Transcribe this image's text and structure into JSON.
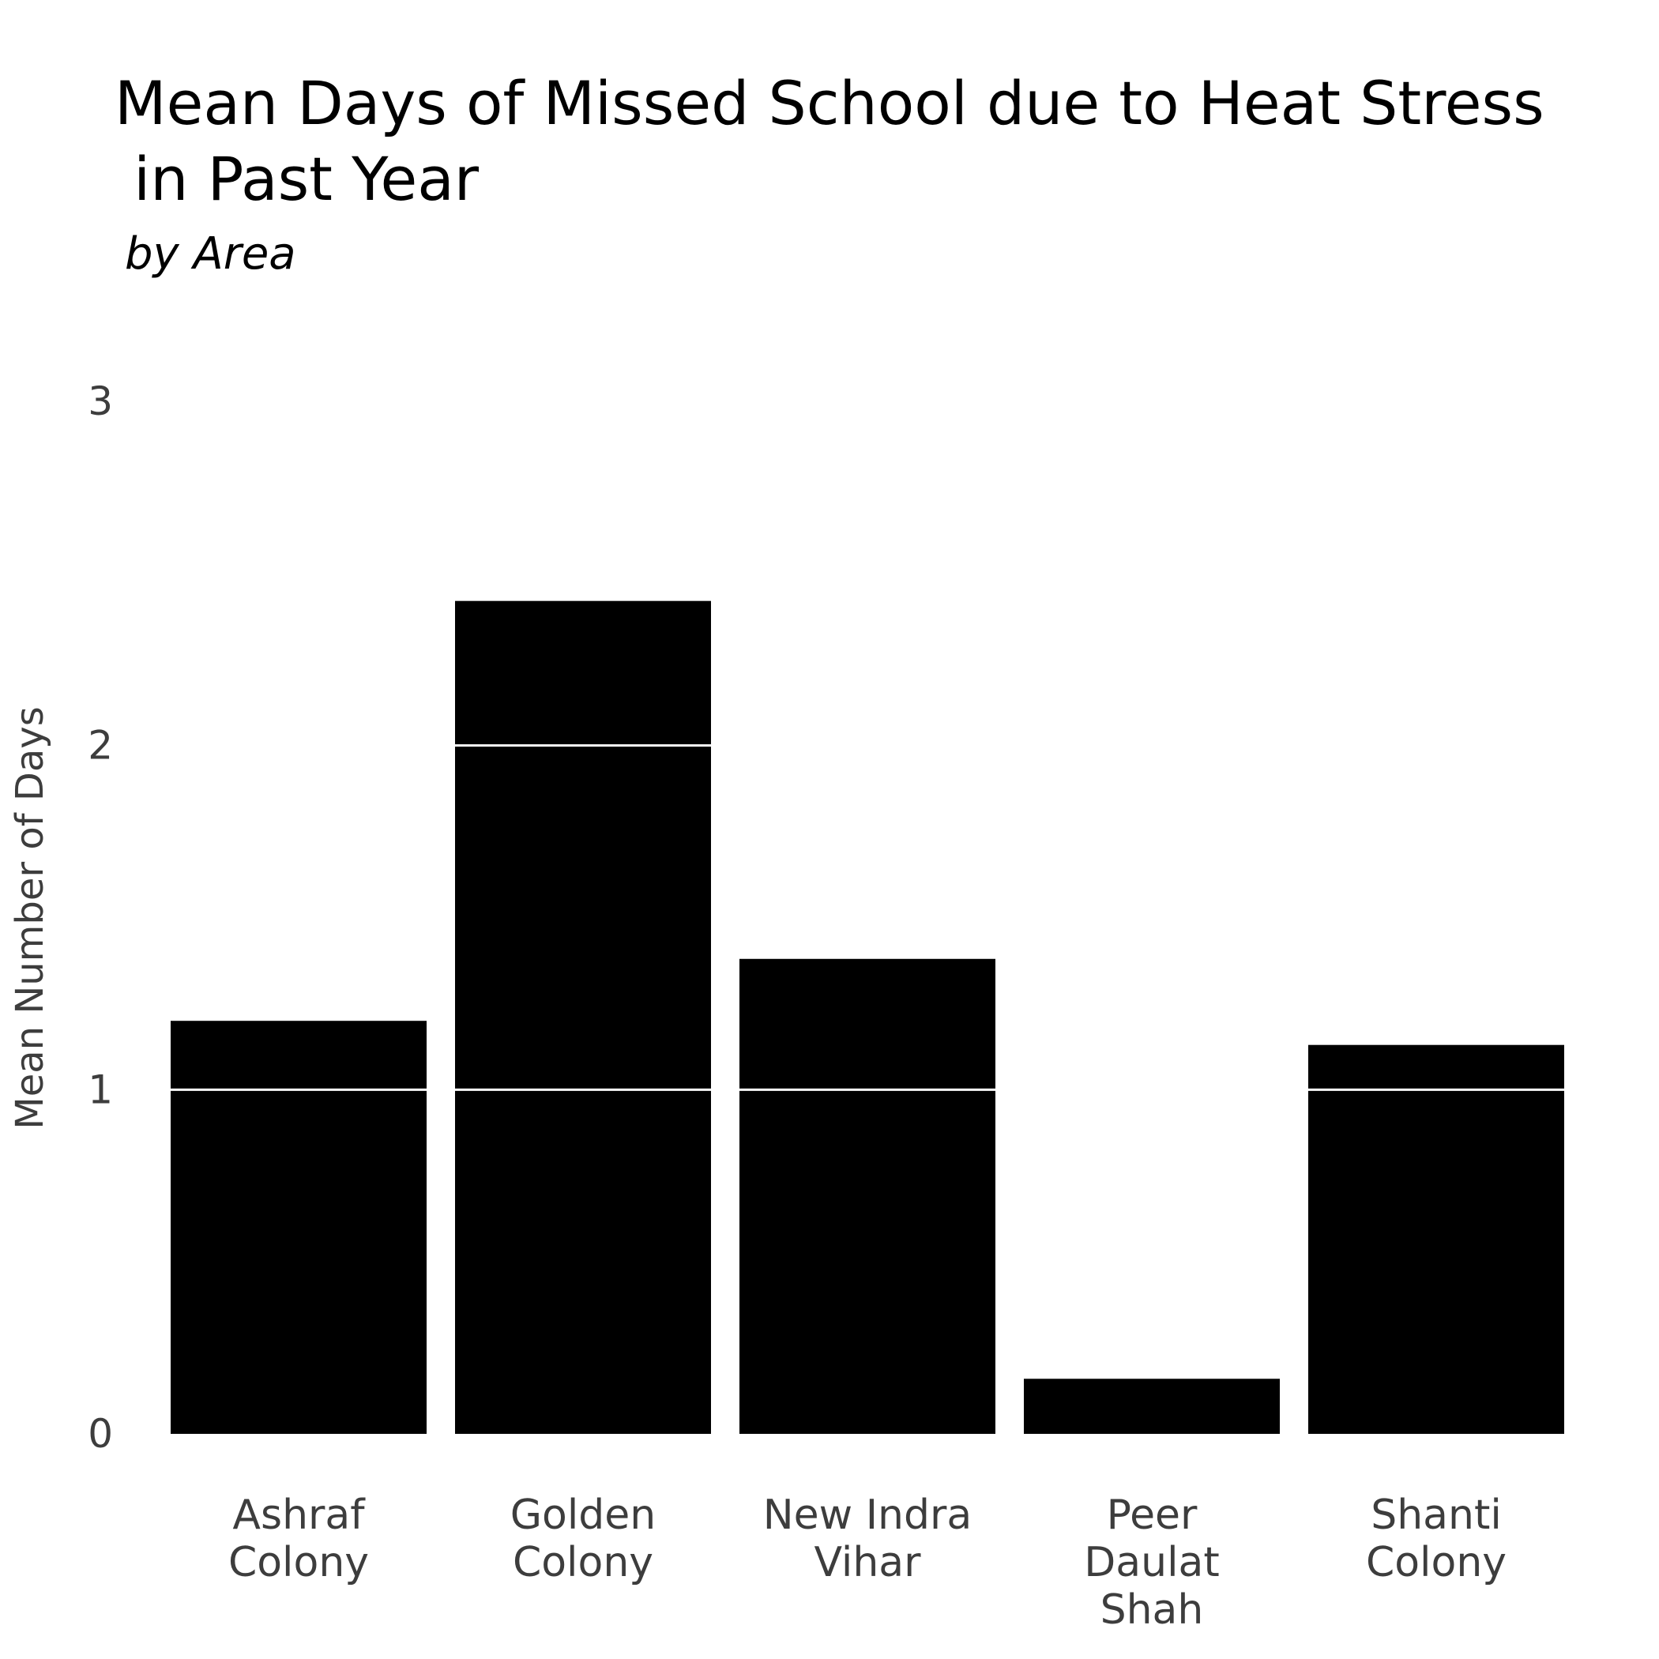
{
  "chart_data": {
    "type": "bar",
    "title": [
      "Mean Days of Missed School due to Heat Stress",
      " in Past Year"
    ],
    "subtitle": "by Area",
    "xlabel": "",
    "ylabel": "Mean Number of Days",
    "ylim": [
      0,
      3
    ],
    "yticks": [
      0,
      1,
      2,
      3
    ],
    "categories": [
      [
        "Ashraf",
        "Colony"
      ],
      [
        "Golden",
        "Colony"
      ],
      [
        "New Indra",
        "Vihar"
      ],
      [
        "Peer",
        "Daulat",
        "Shah"
      ],
      [
        "Shanti",
        "Colony"
      ]
    ],
    "values": [
      1.2,
      2.42,
      1.38,
      0.16,
      1.13
    ],
    "bar_color": "#000000",
    "gridline_color": "#ffffff",
    "grid": "horizontal gridlines drawn over bars",
    "legend": "none"
  }
}
